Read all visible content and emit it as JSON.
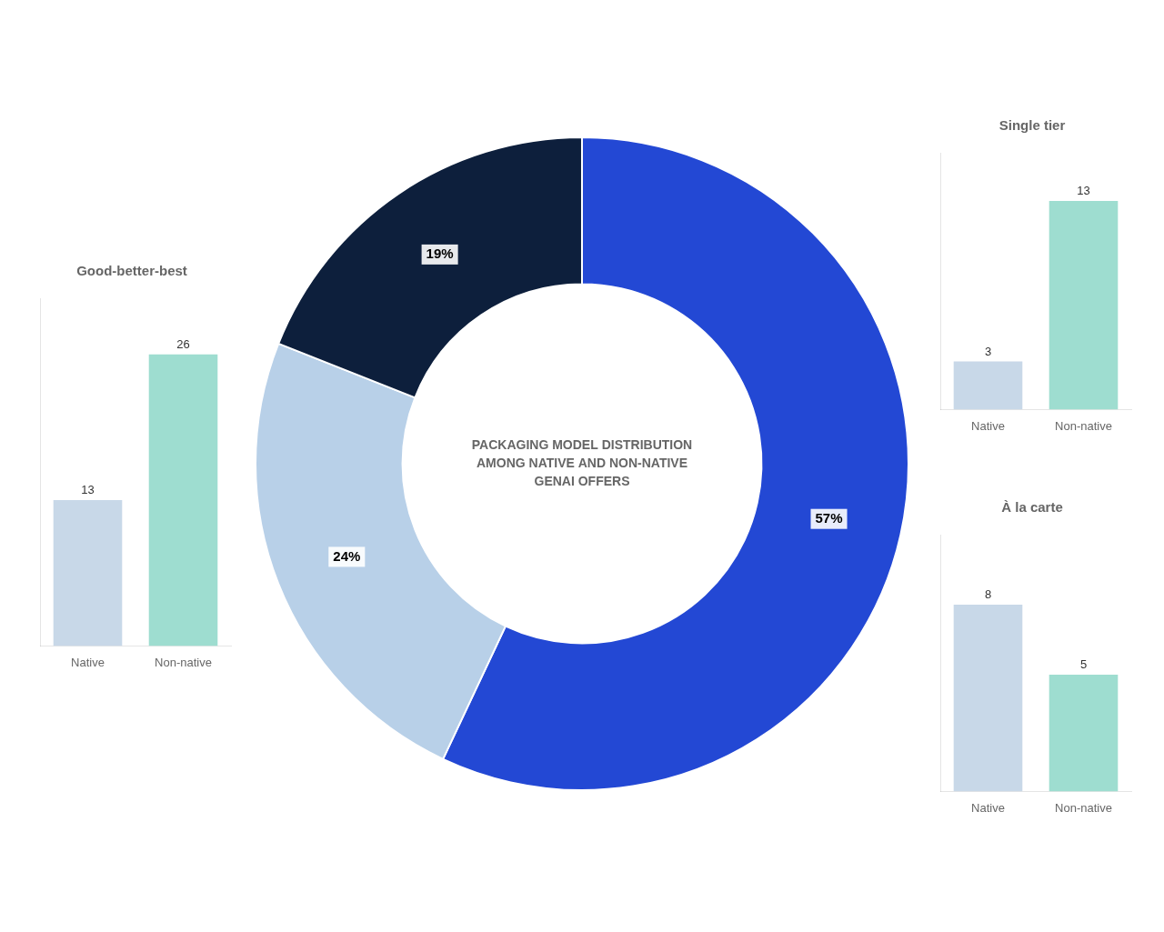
{
  "chart_data": [
    {
      "type": "doughnut",
      "title": "PACKAGING MODEL DISTRIBUTION\nAMONG NATIVE AND NON-NATIVE\nGENAI OFFERS",
      "categories": [
        "Good-better-best",
        "Single tier",
        "À la carte"
      ],
      "values": [
        57,
        24,
        19
      ],
      "value_labels": [
        "57%",
        "24%",
        "19%"
      ],
      "colors": [
        "#2348d4",
        "#b8d0e8",
        "#0d1f3c"
      ],
      "data_labels": true
    },
    {
      "type": "bar",
      "categories": [
        "Native",
        "Non-native"
      ],
      "values": [
        13,
        26
      ],
      "colors": [
        "#c8d8e8",
        "#9eddd0"
      ],
      "ylim": [
        0,
        31
      ],
      "tick_labels": "x",
      "grid": false,
      "data_labels": true
    },
    {
      "type": "bar",
      "categories": [
        "Native",
        "Non-native"
      ],
      "values": [
        3,
        13
      ],
      "colors": [
        "#c8d8e8",
        "#9eddd0"
      ],
      "ylim": [
        0,
        16
      ],
      "tick_labels": "x",
      "grid": false,
      "data_labels": true
    },
    {
      "type": "bar",
      "categories": [
        "Native",
        "Non-native"
      ],
      "values": [
        8,
        5
      ],
      "colors": [
        "#c8d8e8",
        "#9eddd0"
      ],
      "ylim": [
        0,
        11
      ],
      "tick_labels": "x",
      "grid": false,
      "data_labels": true
    }
  ]
}
